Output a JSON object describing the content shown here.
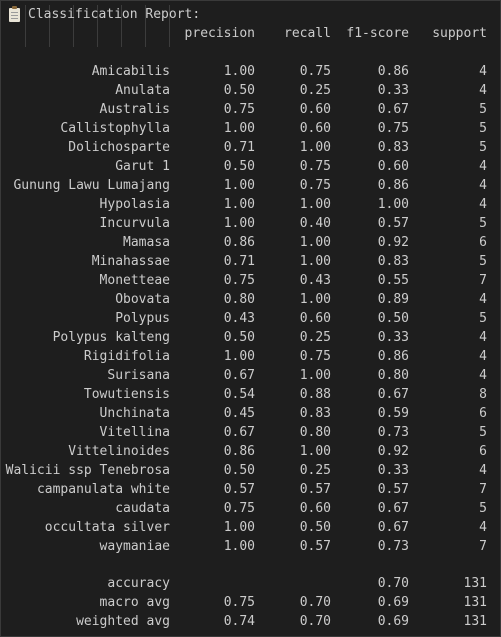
{
  "title": "Classification Report:",
  "headers": {
    "precision": "precision",
    "recall": "recall",
    "f1": "f1-score",
    "support": "support"
  },
  "rows": [
    {
      "label": "Amicabilis",
      "precision": "1.00",
      "recall": "0.75",
      "f1": "0.86",
      "support": "4"
    },
    {
      "label": "Anulata",
      "precision": "0.50",
      "recall": "0.25",
      "f1": "0.33",
      "support": "4"
    },
    {
      "label": "Australis",
      "precision": "0.75",
      "recall": "0.60",
      "f1": "0.67",
      "support": "5"
    },
    {
      "label": "Callistophylla",
      "precision": "1.00",
      "recall": "0.60",
      "f1": "0.75",
      "support": "5"
    },
    {
      "label": "Dolichosparte",
      "precision": "0.71",
      "recall": "1.00",
      "f1": "0.83",
      "support": "5"
    },
    {
      "label": "Garut 1",
      "precision": "0.50",
      "recall": "0.75",
      "f1": "0.60",
      "support": "4"
    },
    {
      "label": "Gunung Lawu Lumajang",
      "precision": "1.00",
      "recall": "0.75",
      "f1": "0.86",
      "support": "4"
    },
    {
      "label": "Hypolasia",
      "precision": "1.00",
      "recall": "1.00",
      "f1": "1.00",
      "support": "4"
    },
    {
      "label": "Incurvula",
      "precision": "1.00",
      "recall": "0.40",
      "f1": "0.57",
      "support": "5"
    },
    {
      "label": "Mamasa",
      "precision": "0.86",
      "recall": "1.00",
      "f1": "0.92",
      "support": "6"
    },
    {
      "label": "Minahassae",
      "precision": "0.71",
      "recall": "1.00",
      "f1": "0.83",
      "support": "5"
    },
    {
      "label": "Monetteae",
      "precision": "0.75",
      "recall": "0.43",
      "f1": "0.55",
      "support": "7"
    },
    {
      "label": "Obovata",
      "precision": "0.80",
      "recall": "1.00",
      "f1": "0.89",
      "support": "4"
    },
    {
      "label": "Polypus",
      "precision": "0.43",
      "recall": "0.60",
      "f1": "0.50",
      "support": "5"
    },
    {
      "label": "Polypus kalteng",
      "precision": "0.50",
      "recall": "0.25",
      "f1": "0.33",
      "support": "4"
    },
    {
      "label": "Rigidifolia",
      "precision": "1.00",
      "recall": "0.75",
      "f1": "0.86",
      "support": "4"
    },
    {
      "label": "Surisana",
      "precision": "0.67",
      "recall": "1.00",
      "f1": "0.80",
      "support": "4"
    },
    {
      "label": "Towutiensis",
      "precision": "0.54",
      "recall": "0.88",
      "f1": "0.67",
      "support": "8"
    },
    {
      "label": "Unchinata",
      "precision": "0.45",
      "recall": "0.83",
      "f1": "0.59",
      "support": "6"
    },
    {
      "label": "Vitellina",
      "precision": "0.67",
      "recall": "0.80",
      "f1": "0.73",
      "support": "5"
    },
    {
      "label": "Vittelinoides",
      "precision": "0.86",
      "recall": "1.00",
      "f1": "0.92",
      "support": "6"
    },
    {
      "label": "Walicii ssp Tenebrosa",
      "precision": "0.50",
      "recall": "0.25",
      "f1": "0.33",
      "support": "4"
    },
    {
      "label": "campanulata white",
      "precision": "0.57",
      "recall": "0.57",
      "f1": "0.57",
      "support": "7"
    },
    {
      "label": "caudata",
      "precision": "0.75",
      "recall": "0.60",
      "f1": "0.67",
      "support": "5"
    },
    {
      "label": "occultata silver",
      "precision": "1.00",
      "recall": "0.50",
      "f1": "0.67",
      "support": "4"
    },
    {
      "label": "waymaniae",
      "precision": "1.00",
      "recall": "0.57",
      "f1": "0.73",
      "support": "7"
    }
  ],
  "summary": [
    {
      "label": "accuracy",
      "precision": "",
      "recall": "",
      "f1": "0.70",
      "support": "131"
    },
    {
      "label": "macro avg",
      "precision": "0.75",
      "recall": "0.70",
      "f1": "0.69",
      "support": "131"
    },
    {
      "label": "weighted avg",
      "precision": "0.74",
      "recall": "0.70",
      "f1": "0.69",
      "support": "131"
    }
  ],
  "colors": {
    "background": "#1e1e1e",
    "text": "#cccccc"
  },
  "icons": {
    "title": "clipboard-icon"
  }
}
